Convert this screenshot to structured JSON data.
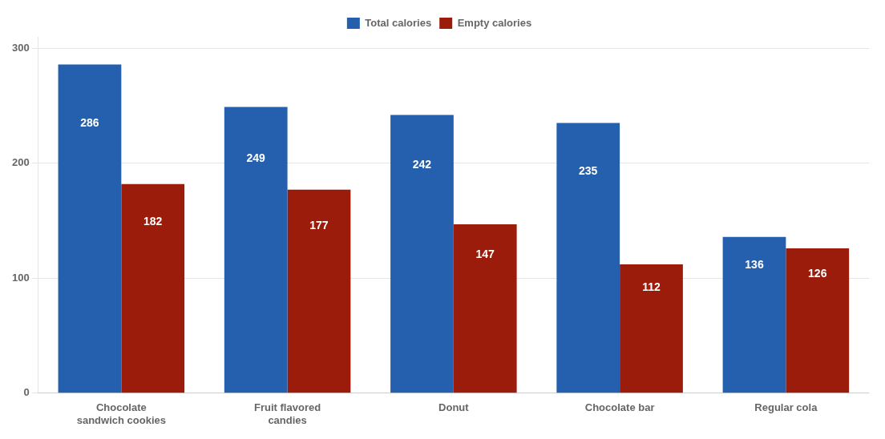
{
  "chart_data": {
    "type": "bar",
    "categories": [
      "Chocolate\nsandwich cookies",
      "Fruit flavored\ncandies",
      "Donut",
      "Chocolate bar",
      "Regular cola"
    ],
    "series": [
      {
        "name": "Total calories",
        "color": "#2560ae",
        "values": [
          286,
          249,
          242,
          235,
          136
        ]
      },
      {
        "name": "Empty calories",
        "color": "#9b1c0a",
        "values": [
          182,
          177,
          147,
          112,
          126
        ]
      }
    ],
    "ylim": [
      0,
      310
    ],
    "yticks": [
      0,
      100,
      200,
      300
    ],
    "grid": true,
    "legend": "top",
    "data_labels": true
  }
}
